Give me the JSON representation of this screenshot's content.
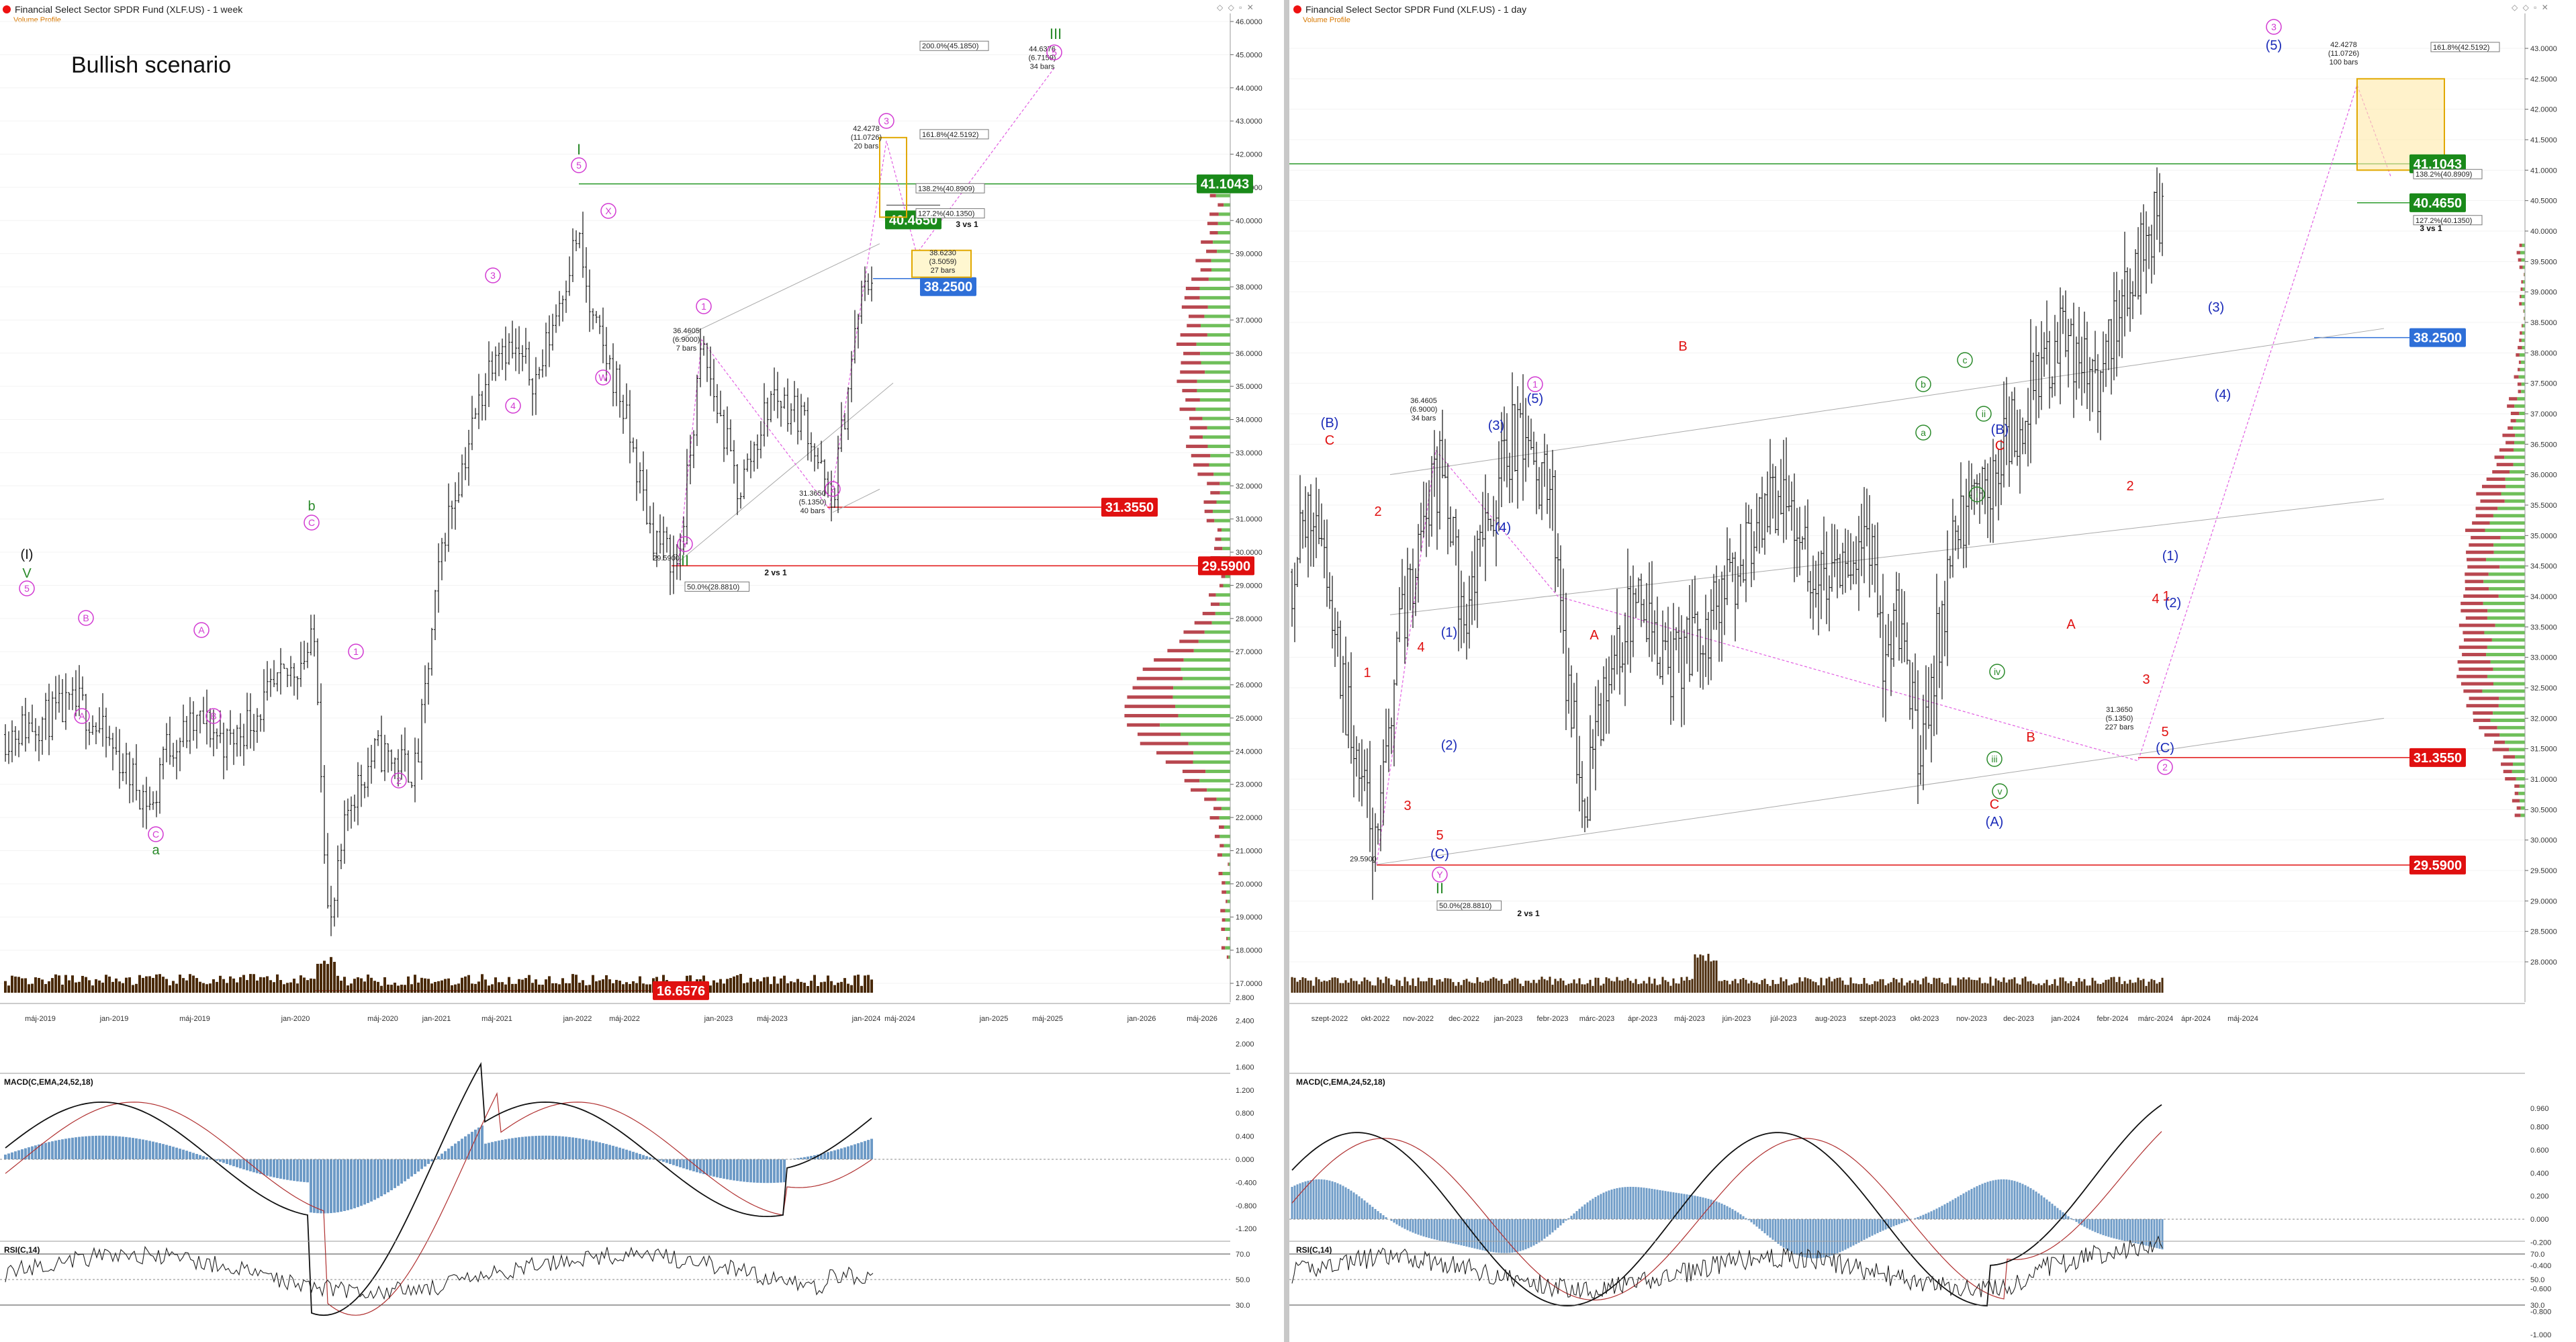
{
  "left": {
    "title": "Financial Select Sector SPDR Fund (XLF.US) - 1 week",
    "volume_profile_label": "Volume Profile",
    "scenario_label": "Bullish scenario",
    "macd_title": "MACD(C,EMA,24,52,18)",
    "rsi_title": "RSI(C,14)",
    "date_labels": [
      "máj-2019",
      "jan-2019",
      "máj-2019",
      "jan-2020",
      "máj-2020",
      "jan-2021",
      "máj-2021",
      "jan-2022",
      "máj-2022",
      "jan-2023",
      "máj-2023",
      "jan-2024",
      "máj-2024",
      "jan-2025",
      "máj-2025",
      "jan-2026",
      "máj-2026"
    ],
    "price_ticks": [
      "46.0000",
      "45.0000",
      "44.0000",
      "43.0000",
      "42.0000",
      "41.0000",
      "40.0000",
      "39.0000",
      "38.0000",
      "37.0000",
      "36.0000",
      "35.0000",
      "34.0000",
      "33.0000",
      "32.0000",
      "31.0000",
      "30.0000",
      "29.0000",
      "28.0000",
      "27.0000",
      "26.0000",
      "25.0000",
      "24.0000",
      "23.0000",
      "22.0000",
      "21.0000",
      "20.0000",
      "19.0000",
      "18.0000",
      "17.0000"
    ],
    "macd_ticks": [
      "2.800",
      "2.400",
      "2.000",
      "1.600",
      "1.200",
      "0.800",
      "0.400",
      "0.000",
      "-0.400",
      "-0.800",
      "-1.200"
    ],
    "rsi_ticks": [
      "70.0",
      "50.0",
      "30.0"
    ],
    "level_boxes": [
      {
        "text": "41.1043",
        "color": "#1a8a1a"
      },
      {
        "text": "40.4650",
        "color": "#1a8a1a"
      },
      {
        "text": "38.2500",
        "color": "#2e6fd8"
      },
      {
        "text": "31.3550",
        "color": "#e01010"
      },
      {
        "text": "29.5900",
        "color": "#e01010"
      },
      {
        "text": "16.6576",
        "color": "#e01010"
      }
    ],
    "wave_labels": {
      "I": "I",
      "II": "II",
      "III": "III",
      "V": "V",
      "b": "b",
      "a": "a",
      "roman1": "(I)",
      "p5a": "5",
      "p3": "3",
      "p4": "4",
      "pW": "W",
      "pX": "X",
      "pY": "Y",
      "p1": "1",
      "p2": "2",
      "p3b": "3",
      "p5b": "5",
      "pA1": "A",
      "pB1": "B",
      "pA2": "A",
      "pB2": "B",
      "pC1": "C",
      "pC2": "C",
      "p1b": "1",
      "p2b": "2",
      "p1c": "1",
      "p2c": "2"
    },
    "annotations": [
      "200.0%(45.1850)",
      "161.8%(42.5192)",
      "138.2%(40.8909)",
      "127.2%(40.1350)",
      "44.6376\n(6.7159)\n34 bars",
      "42.4278\n(11.0726)\n20 bars",
      "38.6230\n(3.5059)\n27 bars",
      "36.4605\n(6.9000)\n7 bars",
      "31.3650\n(5.1350)\n40 bars",
      "29.5900",
      "50.0%(28.8810)",
      "2 vs 1",
      "3 vs 1"
    ]
  },
  "right": {
    "title": "Financial Select Sector SPDR Fund (XLF.US) - 1 day",
    "volume_profile_label": "Volume Profile",
    "macd_title": "MACD(C,EMA,24,52,18)",
    "rsi_title": "RSI(C,14)",
    "date_labels": [
      "szept-2022",
      "okt-2022",
      "nov-2022",
      "dec-2022",
      "jan-2023",
      "febr-2023",
      "márc-2023",
      "ápr-2023",
      "máj-2023",
      "jún-2023",
      "júl-2023",
      "aug-2023",
      "szept-2023",
      "okt-2023",
      "nov-2023",
      "dec-2023",
      "jan-2024",
      "febr-2024",
      "márc-2024",
      "ápr-2024",
      "máj-2024"
    ],
    "price_ticks": [
      "43.0000",
      "42.5000",
      "42.0000",
      "41.5000",
      "41.0000",
      "40.5000",
      "40.0000",
      "39.5000",
      "39.0000",
      "38.5000",
      "38.0000",
      "37.5000",
      "37.0000",
      "36.5000",
      "36.0000",
      "35.5000",
      "35.0000",
      "34.5000",
      "34.0000",
      "33.5000",
      "33.0000",
      "32.5000",
      "32.0000",
      "31.5000",
      "31.0000",
      "30.5000",
      "30.0000",
      "29.5000",
      "29.0000",
      "28.5000",
      "28.0000"
    ],
    "macd_ticks": [
      "0.960",
      "0.800",
      "0.600",
      "0.400",
      "0.200",
      "0.000",
      "-0.200",
      "-0.400",
      "-0.600",
      "-0.800",
      "-1.000"
    ],
    "rsi_ticks": [
      "70.0",
      "50.0",
      "30.0"
    ],
    "level_boxes": [
      {
        "text": "41.1043",
        "color": "#1a8a1a"
      },
      {
        "text": "40.4650",
        "color": "#1a8a1a"
      },
      {
        "text": "38.2500",
        "color": "#2e6fd8"
      },
      {
        "text": "31.3550",
        "color": "#e01010"
      },
      {
        "text": "29.5900",
        "color": "#e01010"
      }
    ],
    "wave_labels": {
      "B_par": "(B)",
      "C1": "C",
      "two_a": "2",
      "one_a": "1",
      "four_a": "4",
      "three_a": "3",
      "five_a": "5",
      "C_par": "(C)",
      "Y": "Y",
      "II": "II",
      "one_par": "(1)",
      "two_par": "(2)",
      "three_par": "(3)",
      "four_par": "(4)",
      "five_par": "(5)",
      "B_a": "B",
      "A_a": "A",
      "C_a": "C",
      "A_par": "(A)",
      "B_par2": "(B)",
      "C_b": "C",
      "B_b": "B",
      "A_b": "A",
      "one_b": "1",
      "two_b": "2",
      "three_b": "3",
      "four_b": "4",
      "five_b": "5",
      "C_par2": "(C)",
      "two_c": "2",
      "one_par2": "(1)",
      "two_par2": "(2)",
      "three_par2": "(3)",
      "four_par2": "(4)",
      "five_par2": "(5)",
      "three_top": "3",
      "a": "a",
      "b": "b",
      "c": "c",
      "i": "i",
      "iv": "iv",
      "iii": "iii",
      "v": "v",
      "ii": "ii"
    },
    "annotations": [
      "42.4278\n(11.0726)\n100 bars",
      "161.8%(42.5192)",
      "138.2%(40.8909)",
      "127.2%(40.1350)",
      "3 vs 1",
      "36.4605\n(6.9000)\n34 bars",
      "31.3650\n(5.1350)\n227 bars",
      "29.5900",
      "50.0%(28.8810)",
      "2 vs 1"
    ]
  },
  "chart_data": [
    {
      "type": "line",
      "title": "Financial Select Sector SPDR Fund (XLF.US) - 1 week",
      "subtitle": "Bullish scenario",
      "ylim": [
        16.5,
        46.5
      ],
      "x": [
        "2018-10",
        "2019-01",
        "2019-05",
        "2019-09",
        "2020-01",
        "2020-03",
        "2020-05",
        "2020-09",
        "2021-01",
        "2021-05",
        "2021-09",
        "2022-01",
        "2022-05",
        "2022-10",
        "2023-01",
        "2023-03",
        "2023-05",
        "2023-08",
        "2023-10",
        "2024-01",
        "2024-03"
      ],
      "series": [
        {
          "values": [
            24.5,
            24.8,
            26.0,
            27.4,
            29.8,
            18.8,
            23.1,
            24.0,
            29.5,
            35.0,
            38.5,
            40.2,
            34.0,
            29.6,
            36.5,
            31.3,
            33.8,
            34.5,
            31.4,
            38.3,
            40.5
          ]
        }
      ],
      "levels": [
        41.1043,
        40.465,
        38.25,
        31.355,
        29.59,
        16.6576
      ],
      "fib_targets": {
        "200.0%": 45.185,
        "161.8%": 42.5192,
        "138.2%": 40.8909,
        "127.2%": 40.135,
        "50.0%": 28.881
      }
    },
    {
      "type": "line",
      "title": "Financial Select Sector SPDR Fund (XLF.US) - 1 day",
      "ylim": [
        28.0,
        43.0
      ],
      "x": [
        "2022-08",
        "2022-09",
        "2022-10",
        "2022-11",
        "2022-12",
        "2023-01",
        "2023-02",
        "2023-03",
        "2023-04",
        "2023-05",
        "2023-06",
        "2023-07",
        "2023-08",
        "2023-09",
        "2023-10",
        "2023-11",
        "2023-12",
        "2024-01",
        "2024-02",
        "2024-03"
      ],
      "series": [
        {
          "values": [
            34.5,
            35.8,
            29.6,
            32.8,
            35.8,
            34.0,
            37.0,
            30.6,
            33.5,
            32.0,
            33.3,
            35.8,
            34.0,
            35.2,
            31.4,
            34.6,
            37.5,
            38.3,
            39.5,
            40.5
          ]
        }
      ],
      "levels": [
        41.1043,
        40.465,
        38.25,
        31.355,
        29.59
      ],
      "fib_targets": {
        "161.8%": 42.5192,
        "138.2%": 40.8909,
        "127.2%": 40.135,
        "50.0%": 28.881
      }
    }
  ]
}
